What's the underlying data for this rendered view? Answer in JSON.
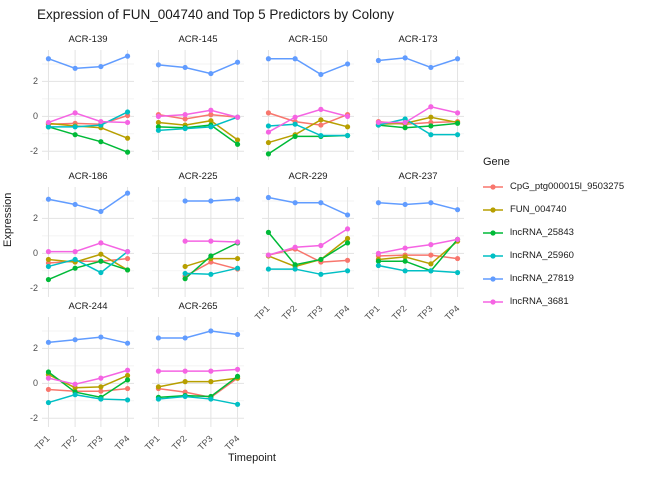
{
  "chart_data": {
    "type": "line",
    "title": "Expression of FUN_004740 and Top 5 Predictors by Colony",
    "xlabel": "Timepoint",
    "ylabel": "Expression",
    "x": [
      "TP1",
      "TP2",
      "TP3",
      "TP4"
    ],
    "y_ticks": [
      2,
      0,
      -2
    ],
    "ylim": [
      -2.5,
      3.8
    ],
    "grid": true,
    "legend_title": "Gene",
    "legend_position": "right",
    "genes": [
      {
        "name": "CpG_ptg000015l_9503275",
        "color": "#F8766D"
      },
      {
        "name": "FUN_004740",
        "color": "#B79F00"
      },
      {
        "name": "lncRNA_25843",
        "color": "#00BA38"
      },
      {
        "name": "lncRNA_25960",
        "color": "#00BFC4"
      },
      {
        "name": "lncRNA_27819",
        "color": "#619CFF"
      },
      {
        "name": "lncRNA_3681",
        "color": "#F564E3"
      }
    ],
    "facets": [
      {
        "colony": "ACR-139",
        "values": [
          [
            -0.45,
            -0.4,
            -0.45,
            0.05
          ],
          [
            -0.4,
            -0.55,
            -0.65,
            -1.25
          ],
          [
            -0.6,
            -1.05,
            -1.45,
            -2.05
          ],
          [
            -0.6,
            -0.6,
            -0.5,
            0.25
          ],
          [
            3.3,
            2.75,
            2.85,
            3.45
          ],
          [
            -0.35,
            0.2,
            -0.3,
            -0.35
          ]
        ]
      },
      {
        "colony": "ACR-145",
        "values": [
          [
            0.1,
            -0.15,
            0.1,
            -0.05
          ],
          [
            -0.35,
            -0.5,
            -0.25,
            -1.35
          ],
          [
            -0.6,
            -0.65,
            -0.5,
            -1.6
          ],
          [
            -0.8,
            -0.7,
            -0.6,
            -0.05
          ],
          [
            2.95,
            2.8,
            2.45,
            3.1
          ],
          [
            0.0,
            0.1,
            0.35,
            -0.05
          ]
        ]
      },
      {
        "colony": "ACR-150",
        "values": [
          [
            0.2,
            -0.3,
            -0.5,
            0.1
          ],
          [
            -1.5,
            -1.05,
            -0.2,
            -0.6
          ],
          [
            -2.15,
            -1.15,
            -1.15,
            -1.1
          ],
          [
            -0.55,
            -0.45,
            -1.1,
            -1.1
          ],
          [
            3.3,
            3.3,
            2.4,
            3.0
          ],
          [
            -0.9,
            -0.05,
            0.4,
            0.0
          ]
        ]
      },
      {
        "colony": "ACR-173",
        "values": [
          [
            -0.3,
            -0.45,
            -0.35,
            -0.3
          ],
          [
            -0.45,
            -0.4,
            -0.05,
            -0.35
          ],
          [
            -0.5,
            -0.65,
            -0.55,
            -0.4
          ],
          [
            -0.5,
            -0.15,
            -1.05,
            -1.05
          ],
          [
            3.2,
            3.35,
            2.8,
            3.3
          ],
          [
            -0.35,
            -0.35,
            0.55,
            0.2
          ]
        ]
      },
      {
        "colony": "ACR-186",
        "values": [
          [
            -0.55,
            -0.45,
            -0.45,
            -0.3
          ],
          [
            -0.35,
            -0.5,
            -0.05,
            -0.95
          ],
          [
            -1.5,
            -0.85,
            -0.45,
            -0.95
          ],
          [
            -0.75,
            -0.35,
            -1.1,
            0.1
          ],
          [
            3.1,
            2.8,
            2.4,
            3.45
          ],
          [
            0.1,
            0.1,
            0.6,
            0.1
          ]
        ]
      },
      {
        "colony": "ACR-225",
        "values": [
          [
            null,
            -1.3,
            -0.5,
            -0.9
          ],
          [
            null,
            -0.75,
            -0.3,
            -0.3
          ],
          [
            null,
            -1.45,
            -0.15,
            0.6
          ],
          [
            null,
            -1.15,
            -1.2,
            -0.85
          ],
          [
            null,
            3.0,
            3.0,
            3.1
          ],
          [
            null,
            0.7,
            0.7,
            0.65
          ]
        ]
      },
      {
        "colony": "ACR-229",
        "values": [
          [
            -0.1,
            0.25,
            -0.5,
            -0.4
          ],
          [
            -0.15,
            -0.75,
            -0.35,
            0.85
          ],
          [
            1.2,
            -0.65,
            -0.35,
            0.6
          ],
          [
            -0.9,
            -0.9,
            -1.2,
            -1.0
          ],
          [
            3.2,
            2.9,
            2.9,
            2.2
          ],
          [
            -0.1,
            0.35,
            0.45,
            1.4
          ]
        ]
      },
      {
        "colony": "ACR-237",
        "values": [
          [
            -0.15,
            -0.1,
            -0.1,
            -0.3
          ],
          [
            -0.35,
            -0.2,
            -0.6,
            0.7
          ],
          [
            -0.45,
            -0.45,
            -1.0,
            0.8
          ],
          [
            -0.7,
            -1.0,
            -1.0,
            -1.1
          ],
          [
            2.9,
            2.8,
            2.9,
            2.5
          ],
          [
            0.0,
            0.3,
            0.5,
            0.8
          ]
        ]
      },
      {
        "colony": "ACR-244",
        "values": [
          [
            -0.35,
            -0.45,
            -0.45,
            -0.3
          ],
          [
            0.5,
            -0.25,
            -0.2,
            0.45
          ],
          [
            0.65,
            -0.5,
            -0.8,
            0.2
          ],
          [
            -1.1,
            -0.65,
            -0.9,
            -0.95
          ],
          [
            2.35,
            2.5,
            2.65,
            2.3
          ],
          [
            0.3,
            -0.05,
            0.3,
            0.75
          ]
        ]
      },
      {
        "colony": "ACR-265",
        "values": [
          [
            -0.3,
            -0.5,
            -0.8,
            0.3
          ],
          [
            -0.2,
            0.1,
            0.1,
            0.3
          ],
          [
            -0.8,
            -0.7,
            -0.75,
            0.4
          ],
          [
            -0.9,
            -0.75,
            -0.9,
            -1.2
          ],
          [
            2.6,
            2.6,
            3.0,
            2.8
          ],
          [
            0.7,
            0.7,
            0.7,
            0.8
          ]
        ]
      }
    ]
  }
}
